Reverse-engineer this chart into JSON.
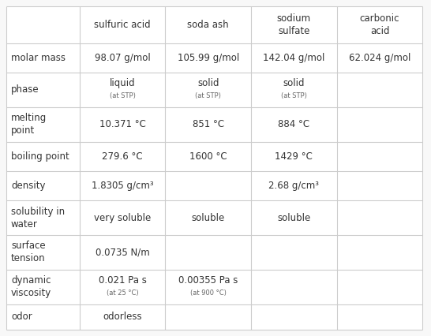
{
  "columns": [
    "",
    "sulfuric acid",
    "soda ash",
    "sodium\nsulfate",
    "carbonic\nacid"
  ],
  "rows": [
    {
      "label": "molar mass",
      "values": [
        "98.07 g/mol",
        "105.99 g/mol",
        "142.04 g/mol",
        "62.024 g/mol"
      ]
    },
    {
      "label": "phase",
      "values": [
        [
          "liquid",
          "(at STP)"
        ],
        [
          "solid",
          "(at STP)"
        ],
        [
          "solid",
          "(at STP)"
        ],
        ""
      ]
    },
    {
      "label": "melting\npoint",
      "values": [
        "10.371 °C",
        "851 °C",
        "884 °C",
        ""
      ]
    },
    {
      "label": "boiling point",
      "values": [
        "279.6 °C",
        "1600 °C",
        "1429 °C",
        ""
      ]
    },
    {
      "label": "density",
      "values": [
        "1.8305 g/cm³",
        "",
        "2.68 g/cm³",
        ""
      ]
    },
    {
      "label": "solubility in\nwater",
      "values": [
        "very soluble",
        "soluble",
        "soluble",
        ""
      ]
    },
    {
      "label": "surface\ntension",
      "values": [
        "0.0735 N/m",
        "",
        "",
        ""
      ]
    },
    {
      "label": "dynamic\nviscosity",
      "values": [
        [
          "0.021 Pa s",
          "(at 25 °C)"
        ],
        [
          "0.00355 Pa s",
          "(at 900 °C)"
        ],
        "",
        ""
      ]
    },
    {
      "label": "odor",
      "values": [
        "odorless",
        "",
        "",
        ""
      ]
    }
  ],
  "bg_color": "#f8f8f8",
  "cell_bg": "#ffffff",
  "line_color": "#cccccc",
  "text_color": "#333333",
  "small_text_color": "#666666",
  "font_size": 8.5,
  "small_font_size": 6.0,
  "header_font_size": 8.5,
  "fig_width": 5.46,
  "fig_height": 4.26,
  "dpi": 100
}
